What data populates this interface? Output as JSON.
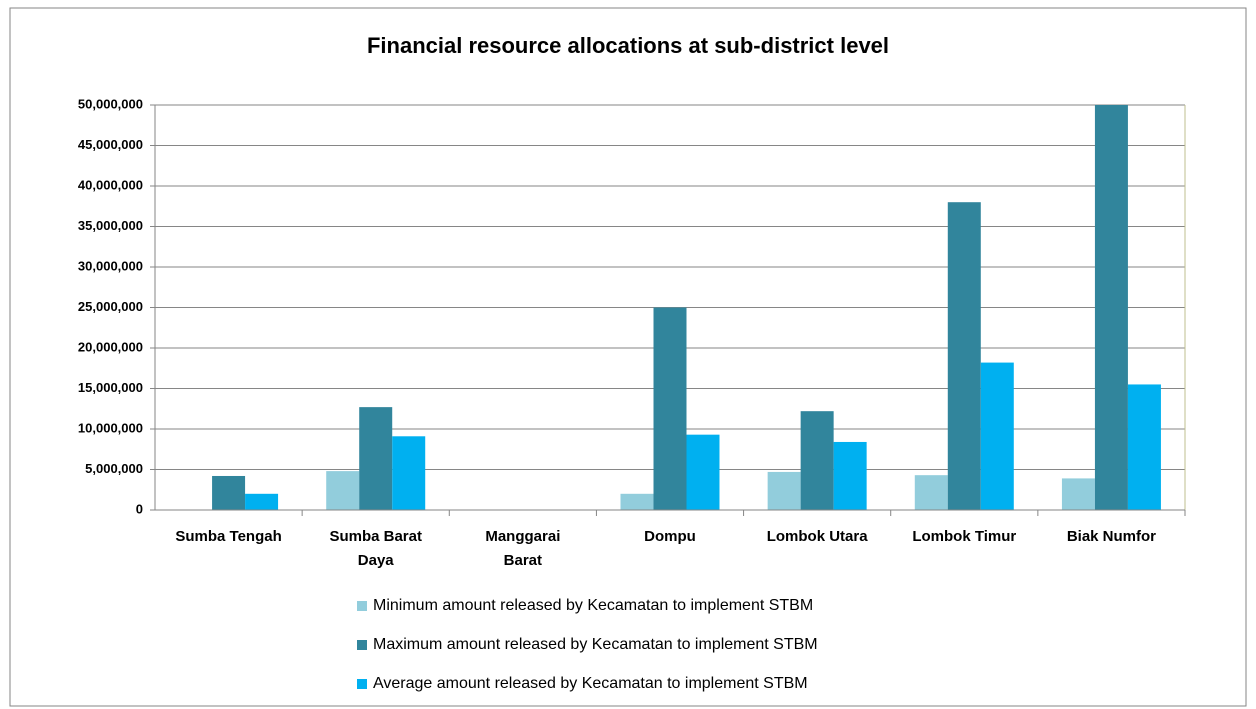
{
  "chart_data": {
    "type": "bar",
    "title": "Financial resource allocations at sub-district level",
    "categories": [
      "Sumba Tengah",
      "Sumba Barat Daya",
      "Manggarai Barat",
      "Dompu",
      "Lombok Utara",
      "Lombok Timur",
      "Biak Numfor"
    ],
    "series": [
      {
        "name": "Minimum amount released by Kecamatan to implement STBM",
        "color": "#92cddc",
        "values": [
          0,
          4800000,
          0,
          2000000,
          4700000,
          4300000,
          3900000
        ]
      },
      {
        "name": "Maximum amount released by Kecamatan to implement STBM",
        "color": "#31859c",
        "values": [
          4200000,
          12700000,
          0,
          25000000,
          12200000,
          38000000,
          50000000
        ]
      },
      {
        "name": "Average amount released by Kecamatan to implement STBM",
        "color": "#00b0f0",
        "values": [
          2000000,
          9100000,
          0,
          9300000,
          8400000,
          18200000,
          15500000
        ]
      }
    ],
    "ylim": [
      0,
      50000000
    ],
    "yticks": [
      0,
      {
        "value": 5000000,
        "label": "5,000,000"
      },
      {
        "value": 10000000,
        "label": "10,000,000"
      },
      {
        "value": 15000000,
        "label": "15,000,000"
      },
      {
        "value": 20000000,
        "label": "20,000,000"
      },
      {
        "value": 25000000,
        "label": "25,000,000"
      },
      {
        "value": 30000000,
        "label": "30,000,000"
      },
      {
        "value": 35000000,
        "label": "35,000,000"
      },
      {
        "value": 40000000,
        "label": "40,000,000"
      },
      {
        "value": 45000000,
        "label": "45,000,000"
      },
      {
        "value": 50000000,
        "label": "50,000,000"
      }
    ],
    "grid": true,
    "legend": "bottom"
  }
}
